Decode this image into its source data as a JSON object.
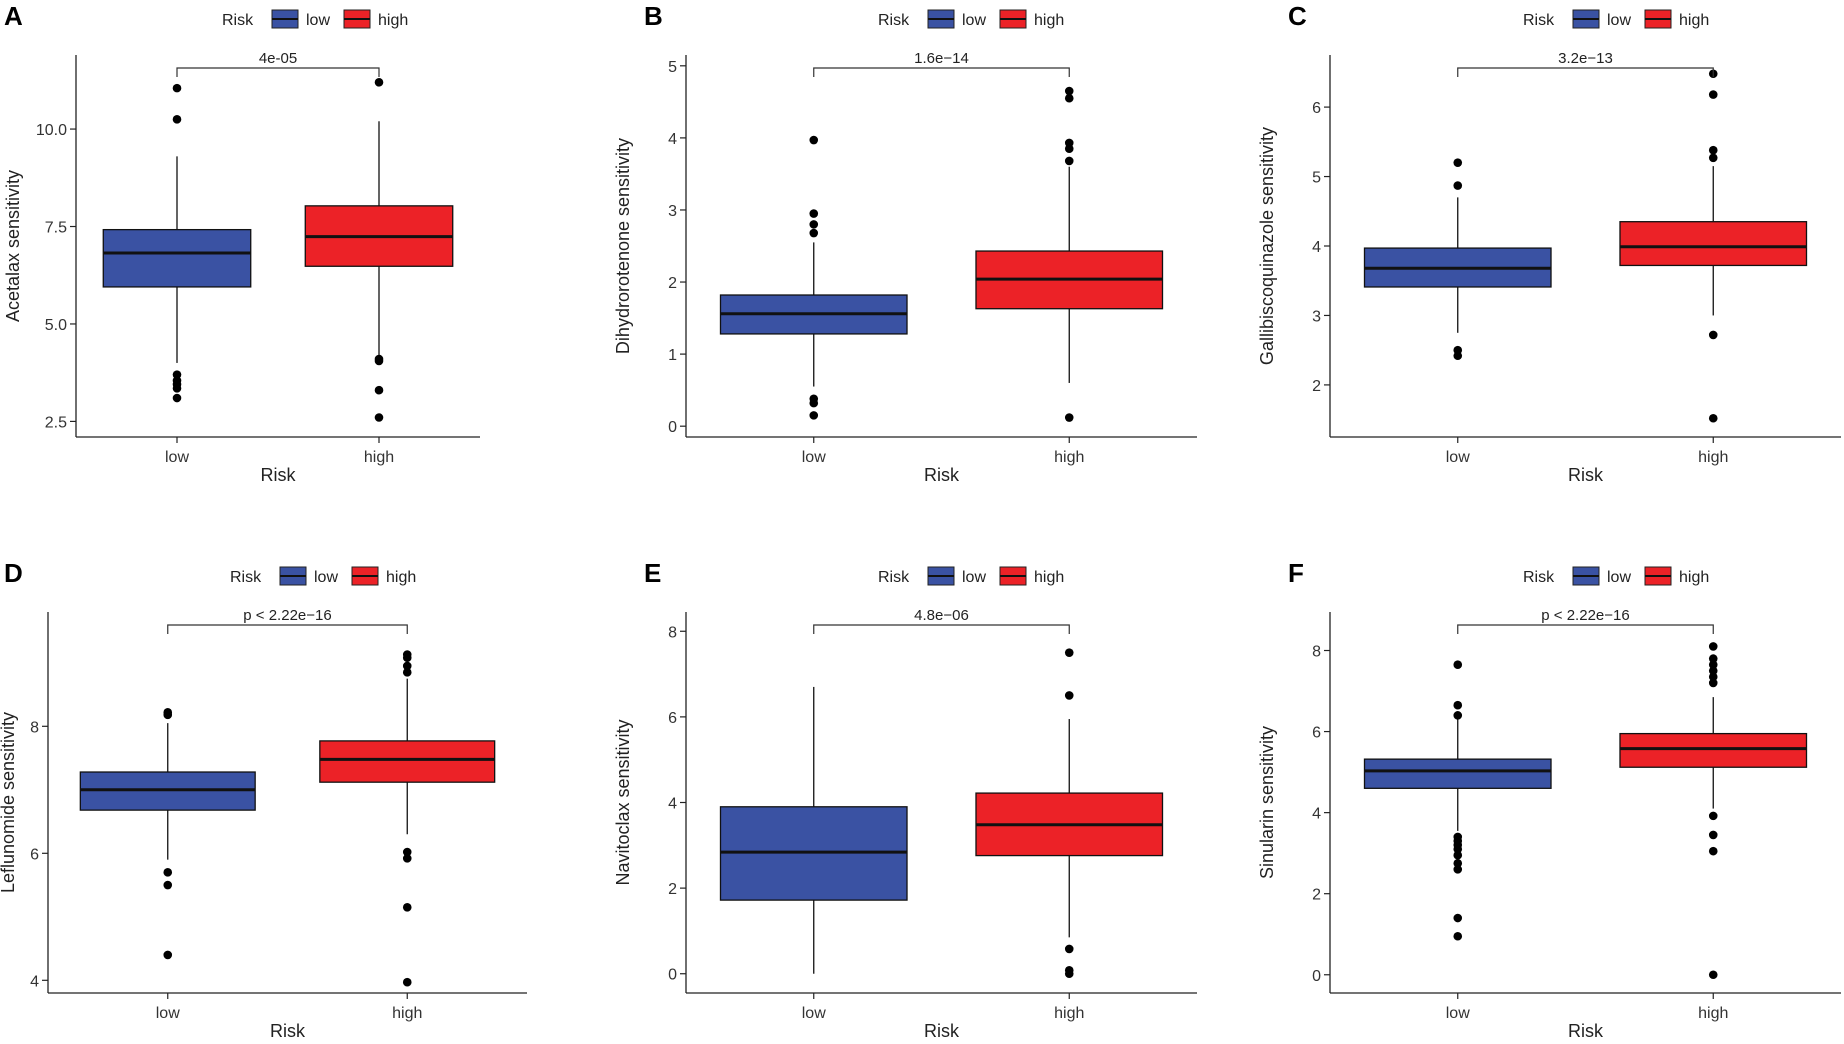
{
  "colors": {
    "low": "#3a52a3",
    "high": "#ec2227",
    "axis": "#222222",
    "outlier": "#000000"
  },
  "chart_data": [
    {
      "panel": "A",
      "type": "box",
      "legend": {
        "title": "Risk",
        "items": [
          "low",
          "high"
        ]
      },
      "categories": [
        "low",
        "high"
      ],
      "xlabel": "Risk",
      "ylabel": "Acetalax sensitivity",
      "ylim": [
        2.1,
        11.9
      ],
      "yticks": [
        2.5,
        5.0,
        7.5,
        10.0
      ],
      "ytick_labels": [
        "2.5",
        "5.0",
        "7.5",
        "10.0"
      ],
      "pvalue": "4e-05",
      "boxes": [
        {
          "group": "low",
          "q1": 5.95,
          "median": 6.82,
          "q3": 7.42,
          "whisker_low": 4.0,
          "whisker_high": 9.3,
          "outliers": [
            3.1,
            3.35,
            3.45,
            3.55,
            3.7,
            10.25,
            11.05
          ]
        },
        {
          "group": "high",
          "q1": 6.48,
          "median": 7.24,
          "q3": 8.03,
          "whisker_low": 4.2,
          "whisker_high": 10.2,
          "outliers": [
            2.6,
            3.3,
            4.05,
            4.1,
            11.2
          ]
        }
      ]
    },
    {
      "panel": "B",
      "type": "box",
      "legend": {
        "title": "Risk",
        "items": [
          "low",
          "high"
        ]
      },
      "categories": [
        "low",
        "high"
      ],
      "xlabel": "Risk",
      "ylabel": "Dihydrorotenone sensitivity",
      "ylim": [
        -0.15,
        5.15
      ],
      "yticks": [
        0,
        1,
        2,
        3,
        4,
        5
      ],
      "ytick_labels": [
        "0",
        "1",
        "2",
        "3",
        "4",
        "5"
      ],
      "pvalue": "1.6e−14",
      "boxes": [
        {
          "group": "low",
          "q1": 1.28,
          "median": 1.56,
          "q3": 1.82,
          "whisker_low": 0.55,
          "whisker_high": 2.55,
          "outliers": [
            0.15,
            0.32,
            0.38,
            2.68,
            2.8,
            2.95,
            3.97
          ]
        },
        {
          "group": "high",
          "q1": 1.63,
          "median": 2.04,
          "q3": 2.43,
          "whisker_low": 0.6,
          "whisker_high": 3.6,
          "outliers": [
            0.12,
            3.68,
            3.85,
            3.93,
            4.55,
            4.65
          ]
        }
      ]
    },
    {
      "panel": "C",
      "type": "box",
      "legend": {
        "title": "Risk",
        "items": [
          "low",
          "high"
        ]
      },
      "categories": [
        "low",
        "high"
      ],
      "xlabel": "Risk",
      "ylabel": "Gallibiscoquinazole sensitivity",
      "ylim": [
        1.25,
        6.75
      ],
      "yticks": [
        2,
        3,
        4,
        5,
        6
      ],
      "ytick_labels": [
        "2",
        "3",
        "4",
        "5",
        "6"
      ],
      "pvalue": "3.2e−13",
      "boxes": [
        {
          "group": "low",
          "q1": 3.41,
          "median": 3.68,
          "q3": 3.97,
          "whisker_low": 2.75,
          "whisker_high": 4.7,
          "outliers": [
            2.42,
            2.5,
            4.87,
            5.2
          ]
        },
        {
          "group": "high",
          "q1": 3.72,
          "median": 3.99,
          "q3": 4.35,
          "whisker_low": 3.0,
          "whisker_high": 5.15,
          "outliers": [
            1.52,
            2.72,
            5.27,
            5.38,
            6.18,
            6.48
          ]
        }
      ]
    },
    {
      "panel": "D",
      "type": "box",
      "legend": {
        "title": "Risk",
        "items": [
          "low",
          "high"
        ]
      },
      "categories": [
        "low",
        "high"
      ],
      "xlabel": "Risk",
      "ylabel": "Leflunomide sensitivity",
      "ylim": [
        3.8,
        9.8
      ],
      "yticks": [
        4,
        6,
        8
      ],
      "ytick_labels": [
        "4",
        "6",
        "8"
      ],
      "pvalue": "p < 2.22e−16",
      "boxes": [
        {
          "group": "low",
          "q1": 6.68,
          "median": 7.0,
          "q3": 7.28,
          "whisker_low": 5.9,
          "whisker_high": 8.05,
          "outliers": [
            4.4,
            5.5,
            5.7,
            8.18,
            8.22
          ]
        },
        {
          "group": "high",
          "q1": 7.12,
          "median": 7.48,
          "q3": 7.77,
          "whisker_low": 6.3,
          "whisker_high": 8.75,
          "outliers": [
            3.97,
            5.15,
            5.92,
            6.02,
            8.85,
            8.95,
            9.08,
            9.13
          ]
        }
      ]
    },
    {
      "panel": "E",
      "type": "box",
      "legend": {
        "title": "Risk",
        "items": [
          "low",
          "high"
        ]
      },
      "categories": [
        "low",
        "high"
      ],
      "xlabel": "Risk",
      "ylabel": "Navitoclax sensitivity",
      "ylim": [
        -0.45,
        8.45
      ],
      "yticks": [
        0,
        2,
        4,
        6,
        8
      ],
      "ytick_labels": [
        "0",
        "2",
        "4",
        "6",
        "8"
      ],
      "pvalue": "4.8e−06",
      "boxes": [
        {
          "group": "low",
          "q1": 1.72,
          "median": 2.84,
          "q3": 3.9,
          "whisker_low": 0.0,
          "whisker_high": 6.7,
          "outliers": []
        },
        {
          "group": "high",
          "q1": 2.76,
          "median": 3.48,
          "q3": 4.22,
          "whisker_low": 0.85,
          "whisker_high": 5.95,
          "outliers": [
            0.0,
            0.08,
            0.58,
            6.5,
            7.5
          ]
        }
      ]
    },
    {
      "panel": "F",
      "type": "box",
      "legend": {
        "title": "Risk",
        "items": [
          "low",
          "high"
        ]
      },
      "categories": [
        "low",
        "high"
      ],
      "xlabel": "Risk",
      "ylabel": "Sinularin sensitivity",
      "ylim": [
        -0.45,
        8.95
      ],
      "yticks": [
        0,
        2,
        4,
        6,
        8
      ],
      "ytick_labels": [
        "0",
        "2",
        "4",
        "6",
        "8"
      ],
      "pvalue": "p < 2.22e−16",
      "boxes": [
        {
          "group": "low",
          "q1": 4.6,
          "median": 5.03,
          "q3": 5.32,
          "whisker_low": 3.55,
          "whisker_high": 6.3,
          "outliers": [
            0.95,
            1.4,
            2.6,
            2.75,
            2.95,
            3.1,
            3.2,
            3.3,
            3.4,
            6.4,
            6.65,
            7.65
          ]
        },
        {
          "group": "high",
          "q1": 5.12,
          "median": 5.58,
          "q3": 5.95,
          "whisker_low": 4.1,
          "whisker_high": 6.85,
          "outliers": [
            0.0,
            3.05,
            3.45,
            3.92,
            7.2,
            7.35,
            7.5,
            7.65,
            7.8,
            8.1
          ]
        }
      ]
    }
  ]
}
